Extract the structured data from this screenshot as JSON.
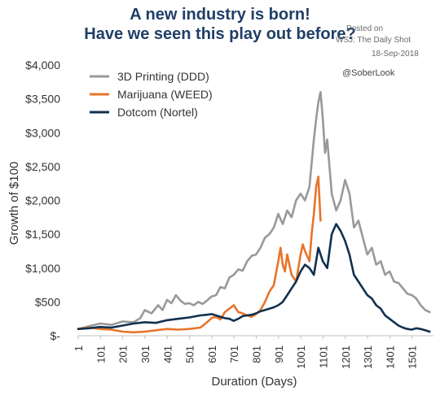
{
  "header": {
    "title_line1": "A new industry is born!",
    "title_line2": "Have we seen this play out before?"
  },
  "source": {
    "posted_on": "Posted on",
    "publisher": "WSJ: The Daily Shot",
    "date": "18-Sep-2018",
    "handle": "@SoberLook"
  },
  "chart_data": {
    "type": "line",
    "title": "A new industry is born! Have we seen this play out before?",
    "xlabel": "Duration (Days)",
    "ylabel": "Growth of $100",
    "xlim": [
      1,
      1590
    ],
    "ylim": [
      0,
      4000
    ],
    "x_ticks": [
      1,
      101,
      201,
      301,
      401,
      501,
      601,
      701,
      801,
      901,
      1001,
      1101,
      1201,
      1301,
      1401,
      1501
    ],
    "y_ticks": [
      0,
      500,
      1000,
      1500,
      2000,
      2500,
      3000,
      3500,
      4000
    ],
    "y_tick_labels": [
      "$-",
      "$500",
      "$1,000",
      "$1,500",
      "$2,000",
      "$2,500",
      "$3,000",
      "$3,500",
      "$4,000"
    ],
    "legend_position": "top-left",
    "grid": false,
    "series": [
      {
        "name": "3D Printing (DDD)",
        "color": "#999999",
        "x": [
          1,
          50,
          100,
          150,
          200,
          250,
          280,
          300,
          330,
          360,
          380,
          400,
          420,
          440,
          460,
          480,
          500,
          520,
          540,
          560,
          580,
          600,
          620,
          640,
          660,
          680,
          700,
          720,
          740,
          760,
          780,
          800,
          820,
          840,
          860,
          880,
          900,
          920,
          940,
          960,
          980,
          1000,
          1020,
          1040,
          1060,
          1070,
          1080,
          1090,
          1100,
          1110,
          1120,
          1140,
          1160,
          1180,
          1200,
          1220,
          1240,
          1260,
          1280,
          1300,
          1320,
          1340,
          1360,
          1380,
          1400,
          1420,
          1440,
          1460,
          1480,
          1500,
          1520,
          1540,
          1560,
          1580
        ],
        "y": [
          100,
          140,
          180,
          160,
          210,
          200,
          260,
          380,
          330,
          450,
          380,
          530,
          480,
          600,
          520,
          470,
          480,
          450,
          500,
          470,
          520,
          580,
          600,
          720,
          700,
          860,
          900,
          980,
          960,
          1100,
          1180,
          1200,
          1300,
          1450,
          1500,
          1600,
          1800,
          1650,
          1850,
          1750,
          2000,
          2100,
          2000,
          2200,
          2900,
          3200,
          3450,
          3600,
          3200,
          2700,
          2900,
          2100,
          1850,
          2000,
          2300,
          2100,
          1600,
          1700,
          1450,
          1200,
          1300,
          1050,
          1100,
          900,
          950,
          800,
          780,
          700,
          620,
          600,
          550,
          450,
          380,
          350
        ]
      },
      {
        "name": "Marijuana (WEED)",
        "color": "#e8742a",
        "x": [
          1,
          50,
          100,
          150,
          200,
          250,
          300,
          350,
          400,
          450,
          500,
          550,
          580,
          600,
          620,
          640,
          660,
          680,
          700,
          720,
          740,
          760,
          780,
          800,
          820,
          840,
          860,
          880,
          900,
          910,
          920,
          930,
          940,
          960,
          980,
          1000,
          1010,
          1020,
          1040,
          1050,
          1060,
          1070,
          1080,
          1090
        ],
        "y": [
          100,
          120,
          100,
          90,
          60,
          50,
          60,
          80,
          100,
          90,
          100,
          120,
          200,
          260,
          280,
          240,
          350,
          400,
          450,
          350,
          330,
          300,
          280,
          320,
          380,
          500,
          650,
          750,
          1100,
          1300,
          1050,
          950,
          1200,
          900,
          800,
          1200,
          1350,
          1250,
          1100,
          1500,
          1800,
          2200,
          2350,
          1700
        ]
      },
      {
        "name": "Dotcom (Nortel)",
        "color": "#11304f",
        "x": [
          1,
          50,
          100,
          150,
          200,
          250,
          300,
          350,
          400,
          450,
          500,
          550,
          580,
          600,
          620,
          640,
          660,
          680,
          700,
          720,
          740,
          760,
          780,
          800,
          820,
          840,
          860,
          880,
          900,
          920,
          940,
          960,
          980,
          1000,
          1020,
          1040,
          1060,
          1080,
          1100,
          1120,
          1140,
          1160,
          1180,
          1200,
          1220,
          1240,
          1260,
          1280,
          1300,
          1320,
          1340,
          1360,
          1380,
          1400,
          1420,
          1440,
          1460,
          1480,
          1500,
          1520,
          1540,
          1560,
          1580
        ],
        "y": [
          100,
          110,
          130,
          120,
          150,
          180,
          200,
          190,
          230,
          250,
          270,
          300,
          310,
          320,
          300,
          280,
          260,
          250,
          220,
          250,
          290,
          300,
          310,
          330,
          360,
          380,
          400,
          420,
          450,
          500,
          600,
          700,
          800,
          950,
          1050,
          1000,
          900,
          1300,
          1100,
          1000,
          1500,
          1650,
          1550,
          1400,
          1200,
          900,
          800,
          700,
          600,
          550,
          450,
          400,
          300,
          250,
          200,
          150,
          120,
          100,
          90,
          110,
          100,
          80,
          60
        ]
      }
    ]
  }
}
